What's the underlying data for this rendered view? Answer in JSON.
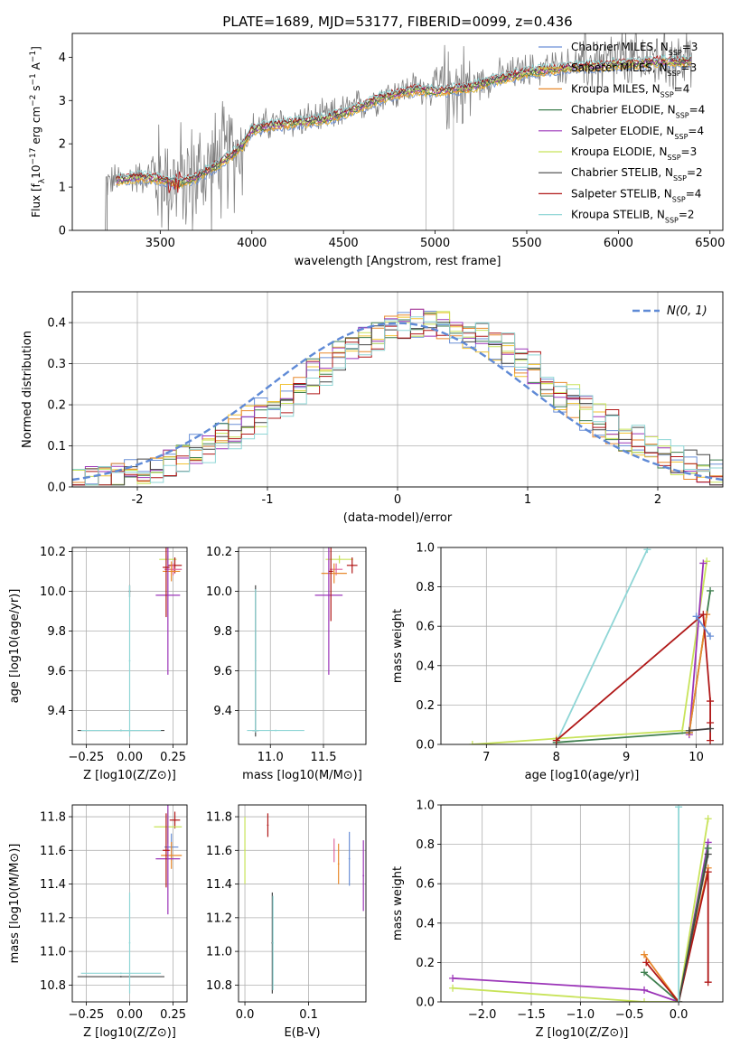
{
  "figure": {
    "title": "PLATE=1689, MJD=53177, FIBERID=0099, z=0.436"
  },
  "legend_spectrum": [
    {
      "label": "Chabrier MILES, N",
      "sub": "SSP",
      "tail": "=3",
      "color": "#6a8fd6"
    },
    {
      "label": "Salpeter MILES, N",
      "sub": "SSP",
      "tail": "=3",
      "color": "#f1c232"
    },
    {
      "label": "Kroupa MILES, N",
      "sub": "SSP",
      "tail": "=4",
      "color": "#e8892d"
    },
    {
      "label": "Chabrier ELODIE, N",
      "sub": "SSP",
      "tail": "=4",
      "color": "#3f7f4f"
    },
    {
      "label": "Salpeter ELODIE, N",
      "sub": "SSP",
      "tail": "=4",
      "color": "#9b35b8"
    },
    {
      "label": "Kroupa ELODIE, N",
      "sub": "SSP",
      "tail": "=3",
      "color": "#c8e35a"
    },
    {
      "label": "Chabrier STELIB, N",
      "sub": "SSP",
      "tail": "=2",
      "color": "#444444"
    },
    {
      "label": "Salpeter STELIB, N",
      "sub": "SSP",
      "tail": "=4",
      "color": "#b01818"
    },
    {
      "label": "Kroupa STELIB, N",
      "sub": "SSP",
      "tail": "=2",
      "color": "#8fd6d6"
    }
  ],
  "chart_data": [
    {
      "type": "line",
      "id": "spectrum",
      "xlabel": "wavelength [Angstrom, rest frame]",
      "ylabel_parts": [
        "Flux [f",
        "λ",
        "10",
        "−17",
        " erg cm",
        "−2",
        " s",
        "−1",
        " A",
        "−1",
        "]"
      ],
      "xlim": [
        3020,
        6570
      ],
      "ylim": [
        0,
        4.55
      ],
      "xticks": [
        3500,
        4000,
        4500,
        5000,
        5500,
        6000,
        6500
      ],
      "yticks": [
        0,
        1,
        2,
        3,
        4
      ],
      "data_color": "#808080",
      "model_continuum": {
        "x": [
          3200,
          3300,
          3400,
          3500,
          3600,
          3700,
          3800,
          3900,
          3950,
          4000,
          4100,
          4200,
          4300,
          4400,
          4500,
          4600,
          4700,
          4800,
          4900,
          5000,
          5100,
          5200,
          5300,
          5400,
          5500,
          5600,
          5700,
          5800,
          5900,
          6000,
          6100,
          6200,
          6300,
          6400
        ],
        "y": [
          1.1,
          1.2,
          1.25,
          1.2,
          1.1,
          1.25,
          1.5,
          1.8,
          2.0,
          2.35,
          2.45,
          2.5,
          2.55,
          2.6,
          2.75,
          2.9,
          3.1,
          3.2,
          3.3,
          3.25,
          3.3,
          3.35,
          3.5,
          3.6,
          3.7,
          3.75,
          3.8,
          3.85,
          3.85,
          3.9,
          3.9,
          3.95,
          3.95,
          3.95
        ]
      }
    },
    {
      "type": "area",
      "id": "residual-histogram",
      "xlabel": "(data-model)/error",
      "ylabel": "Normed distribution",
      "xlim": [
        -2.5,
        2.5
      ],
      "ylim": [
        0,
        0.475
      ],
      "xticks": [
        -2,
        -1,
        0,
        1,
        2
      ],
      "yticks": [
        0.0,
        0.1,
        0.2,
        0.3,
        0.4
      ],
      "gaussian_label": "N(0, 1)",
      "gaussian_color": "#5f8ad6",
      "bin_edges_step": 0.1
    },
    {
      "type": "scatter",
      "id": "age-vs-Z",
      "xlabel": "Z [log10(Z/Z⊙)]",
      "ylabel": "age [log10(age/yr)]",
      "xlim": [
        -0.33,
        0.33
      ],
      "ylim": [
        9.23,
        10.22
      ],
      "xticks": [
        -0.25,
        0.0,
        0.25
      ],
      "yticks": [
        9.4,
        9.6,
        9.8,
        10.0,
        10.2
      ],
      "points": [
        {
          "x": 0.22,
          "y": 10.16,
          "xerr": 0.05,
          "yerr": 0.02,
          "c": "#c8e35a"
        },
        {
          "x": 0.26,
          "y": 10.13,
          "xerr": 0.04,
          "yerr": 0.04,
          "c": "#b01818"
        },
        {
          "x": 0.25,
          "y": 10.11,
          "xerr": 0.05,
          "yerr": 0.03,
          "c": "#e06aa0"
        },
        {
          "x": 0.24,
          "y": 10.1,
          "xerr": 0.05,
          "yerr": 0.05,
          "c": "#e8892d"
        },
        {
          "x": 0.22,
          "y": 9.98,
          "xerr": 0.07,
          "yerr": 0.4,
          "c": "#9b35b8"
        },
        {
          "x": 0.21,
          "y": 10.12,
          "xerr": 0.02,
          "yerr": 0.25,
          "c": "#b01818"
        },
        {
          "x": 0.0,
          "y": 10.0,
          "xerr": 0.0,
          "yerr": 0.03,
          "c": "#444444"
        },
        {
          "x": -0.05,
          "y": 9.3,
          "xerr": 0.25,
          "yerr": 0.0,
          "c": "#444444"
        },
        {
          "x": 0.0,
          "y": 9.65,
          "xerr": 0.0,
          "yerr": 0.38,
          "c": "#8fd6d6"
        },
        {
          "x": -0.05,
          "y": 9.3,
          "xerr": 0.23,
          "yerr": 0.0,
          "c": "#8fd6d6"
        }
      ]
    },
    {
      "type": "scatter",
      "id": "age-vs-mass",
      "xlabel": "mass [log10(M/M⊙)]",
      "ylabel": "",
      "xlim": [
        10.7,
        11.9
      ],
      "ylim": [
        9.23,
        10.22
      ],
      "xticks": [
        11.0,
        11.5
      ],
      "yticks": [
        9.4,
        9.6,
        9.8,
        10.0,
        10.2
      ],
      "points": [
        {
          "x": 11.65,
          "y": 10.16,
          "xerr": 0.13,
          "yerr": 0.02,
          "c": "#c8e35a"
        },
        {
          "x": 11.77,
          "y": 10.13,
          "xerr": 0.05,
          "yerr": 0.04,
          "c": "#b01818"
        },
        {
          "x": 11.62,
          "y": 10.11,
          "xerr": 0.06,
          "yerr": 0.03,
          "c": "#e06aa0"
        },
        {
          "x": 11.6,
          "y": 10.09,
          "xerr": 0.12,
          "yerr": 0.05,
          "c": "#e8892d"
        },
        {
          "x": 11.55,
          "y": 9.98,
          "xerr": 0.13,
          "yerr": 0.4,
          "c": "#9b35b8"
        },
        {
          "x": 11.57,
          "y": 10.1,
          "xerr": 0.02,
          "yerr": 0.25,
          "c": "#b01818"
        },
        {
          "x": 10.86,
          "y": 9.65,
          "xerr": 0.0,
          "yerr": 0.38,
          "c": "#444444"
        },
        {
          "x": 10.86,
          "y": 9.3,
          "xerr": 0.03,
          "yerr": 0.0,
          "c": "#444444"
        },
        {
          "x": 10.86,
          "y": 9.65,
          "xerr": 0.0,
          "yerr": 0.36,
          "c": "#8fd6d6"
        },
        {
          "x": 11.05,
          "y": 9.3,
          "xerr": 0.27,
          "yerr": 0.0,
          "c": "#8fd6d6"
        }
      ]
    },
    {
      "type": "line",
      "id": "mass-weight-vs-age",
      "xlabel": "age [log10(age/yr)]",
      "ylabel": "mass weight",
      "xlim": [
        6.35,
        10.38
      ],
      "ylim": [
        0,
        1.0
      ],
      "xticks": [
        7,
        8,
        9,
        10
      ],
      "yticks": [
        0.0,
        0.2,
        0.4,
        0.6,
        0.8,
        1.0
      ],
      "series": [
        {
          "c": "#8fd6d6",
          "x": [
            8.0,
            9.3
          ],
          "y": [
            0.01,
            0.99
          ]
        },
        {
          "c": "#c8e35a",
          "x": [
            6.8,
            8.0,
            9.8,
            10.15
          ],
          "y": [
            0.0,
            0.03,
            0.07,
            0.93
          ]
        },
        {
          "c": "#3f7f4f",
          "x": [
            8.0,
            9.9,
            10.2
          ],
          "y": [
            0.01,
            0.06,
            0.78
          ]
        },
        {
          "c": "#9b35b8",
          "x": [
            9.9,
            10.1
          ],
          "y": [
            0.05,
            0.92
          ]
        },
        {
          "c": "#e8892d",
          "x": [
            9.9,
            10.15
          ],
          "y": [
            0.06,
            0.66
          ]
        },
        {
          "c": "#b01818",
          "x": [
            8.0,
            10.1,
            10.2,
            10.2,
            10.2
          ],
          "y": [
            0.02,
            0.66,
            0.22,
            0.11,
            0.02
          ]
        },
        {
          "c": "#444444",
          "x": [
            9.9,
            10.2
          ],
          "y": [
            0.07,
            0.08
          ]
        },
        {
          "c": "#6a8fd6",
          "x": [
            10.0,
            10.2
          ],
          "y": [
            0.65,
            0.55
          ]
        }
      ]
    },
    {
      "type": "scatter",
      "id": "mass-vs-Z",
      "xlabel": "Z [log10(Z/Z⊙)]",
      "ylabel": "mass [log10(M/M⊙)]",
      "xlim": [
        -0.33,
        0.33
      ],
      "ylim": [
        10.7,
        11.87
      ],
      "xticks": [
        -0.25,
        0.0,
        0.25
      ],
      "yticks": [
        10.8,
        11.0,
        11.2,
        11.4,
        11.6,
        11.8
      ],
      "points": [
        {
          "x": 0.26,
          "y": 11.78,
          "xerr": 0.03,
          "yerr": 0.05,
          "c": "#b01818"
        },
        {
          "x": 0.22,
          "y": 11.74,
          "xerr": 0.08,
          "yerr": 0.1,
          "c": "#c8e35a"
        },
        {
          "x": 0.24,
          "y": 11.62,
          "xerr": 0.04,
          "yerr": 0.08,
          "c": "#6a8fd6"
        },
        {
          "x": 0.24,
          "y": 11.57,
          "xerr": 0.06,
          "yerr": 0.08,
          "c": "#e8892d"
        },
        {
          "x": 0.22,
          "y": 11.55,
          "xerr": 0.07,
          "yerr": 0.33,
          "c": "#9b35b8"
        },
        {
          "x": 0.21,
          "y": 11.6,
          "xerr": 0.02,
          "yerr": 0.22,
          "c": "#b01818"
        },
        {
          "x": -0.05,
          "y": 10.85,
          "xerr": 0.25,
          "yerr": 0.0,
          "c": "#444444"
        },
        {
          "x": 0.0,
          "y": 11.05,
          "xerr": 0.0,
          "yerr": 0.3,
          "c": "#8fd6d6"
        },
        {
          "x": -0.05,
          "y": 10.87,
          "xerr": 0.23,
          "yerr": 0.0,
          "c": "#8fd6d6"
        }
      ]
    },
    {
      "type": "scatter",
      "id": "mass-vs-EBV",
      "xlabel": "E(B-V)",
      "ylabel": "",
      "xlim": [
        -0.01,
        0.19
      ],
      "ylim": [
        10.7,
        11.87
      ],
      "xticks": [
        0.0,
        0.1
      ],
      "yticks": [
        10.8,
        11.0,
        11.2,
        11.4,
        11.6,
        11.8
      ],
      "points": [
        {
          "x": 0.0,
          "y": 11.6,
          "xerr": 0.0,
          "yerr": 0.2,
          "c": "#c8e35a"
        },
        {
          "x": 0.036,
          "y": 11.75,
          "xerr": 0.0,
          "yerr": 0.07,
          "c": "#b01818"
        },
        {
          "x": 0.043,
          "y": 11.05,
          "xerr": 0.0,
          "yerr": 0.3,
          "c": "#444444"
        },
        {
          "x": 0.044,
          "y": 11.05,
          "xerr": 0.0,
          "yerr": 0.28,
          "c": "#8fd6d6"
        },
        {
          "x": 0.14,
          "y": 11.6,
          "xerr": 0.0,
          "yerr": 0.07,
          "c": "#e06aa0"
        },
        {
          "x": 0.147,
          "y": 11.52,
          "xerr": 0.0,
          "yerr": 0.12,
          "c": "#e8892d"
        },
        {
          "x": 0.164,
          "y": 11.55,
          "xerr": 0.0,
          "yerr": 0.16,
          "c": "#6a8fd6"
        },
        {
          "x": 0.186,
          "y": 11.45,
          "xerr": 0.0,
          "yerr": 0.21,
          "c": "#9b35b8"
        }
      ]
    },
    {
      "type": "line",
      "id": "mass-weight-vs-Z",
      "xlabel": "Z [log10(Z/Z⊙)]",
      "ylabel": "mass weight",
      "xlim": [
        -2.42,
        0.45
      ],
      "ylim": [
        0,
        1.0
      ],
      "xticks": [
        -2.0,
        -1.5,
        -1.0,
        -0.5,
        0.0
      ],
      "yticks": [
        0.0,
        0.2,
        0.4,
        0.6,
        0.8,
        1.0
      ],
      "series": [
        {
          "c": "#9b35b8",
          "x": [
            -2.3,
            -0.35,
            0.0,
            0.3
          ],
          "y": [
            0.12,
            0.06,
            0.0,
            0.81
          ]
        },
        {
          "c": "#c8e35a",
          "x": [
            -2.3,
            -0.35,
            0.0,
            0.3
          ],
          "y": [
            0.07,
            0.0,
            0.0,
            0.93
          ]
        },
        {
          "c": "#e8892d",
          "x": [
            -0.35,
            0.0,
            0.3
          ],
          "y": [
            0.24,
            0.0,
            0.68
          ]
        },
        {
          "c": "#3f7f4f",
          "x": [
            -0.35,
            0.0,
            0.3
          ],
          "y": [
            0.15,
            0.0,
            0.78
          ]
        },
        {
          "c": "#b01818",
          "x": [
            -0.33,
            0.0,
            0.3,
            0.3
          ],
          "y": [
            0.2,
            0.0,
            0.66,
            0.1
          ]
        },
        {
          "c": "#444444",
          "x": [
            0.0,
            0.3
          ],
          "y": [
            0.0,
            0.75
          ]
        },
        {
          "c": "#8fd6d6",
          "x": [
            0.0,
            0.0
          ],
          "y": [
            0.0,
            0.99
          ]
        }
      ]
    }
  ]
}
